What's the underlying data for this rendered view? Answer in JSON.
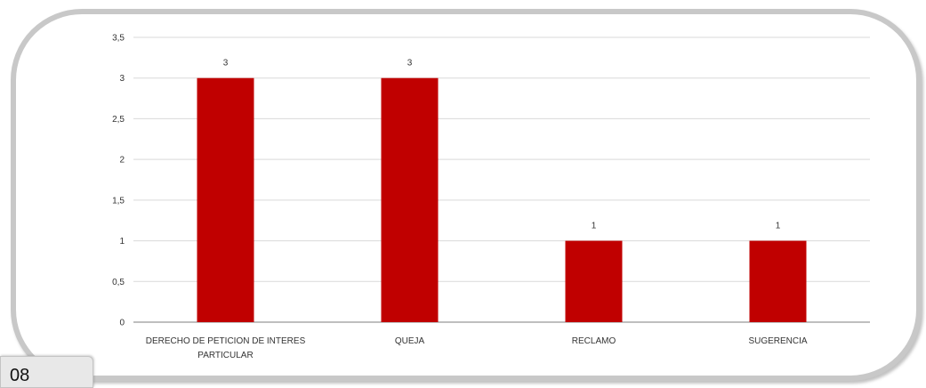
{
  "page": {
    "number": "08"
  },
  "colors": {
    "bar": "#c00000",
    "grid": "#d9d9d9",
    "axis": "#7f7f7f",
    "frame": "#c8c8c8"
  },
  "chart_data": {
    "type": "bar",
    "categories": [
      [
        "DERECHO DE PETICION DE INTERES",
        "PARTICULAR"
      ],
      [
        "QUEJA"
      ],
      [
        "RECLAMO"
      ],
      [
        "SUGERENCIA"
      ]
    ],
    "values": [
      3,
      3,
      1,
      1
    ],
    "data_labels": [
      "3",
      "3",
      "1",
      "1"
    ],
    "ylim": [
      0,
      3.5
    ],
    "yticks": [
      "0",
      "0,5",
      "1",
      "1,5",
      "2",
      "2,5",
      "3",
      "3,5"
    ],
    "grid": true,
    "title": "",
    "xlabel": "",
    "ylabel": ""
  }
}
